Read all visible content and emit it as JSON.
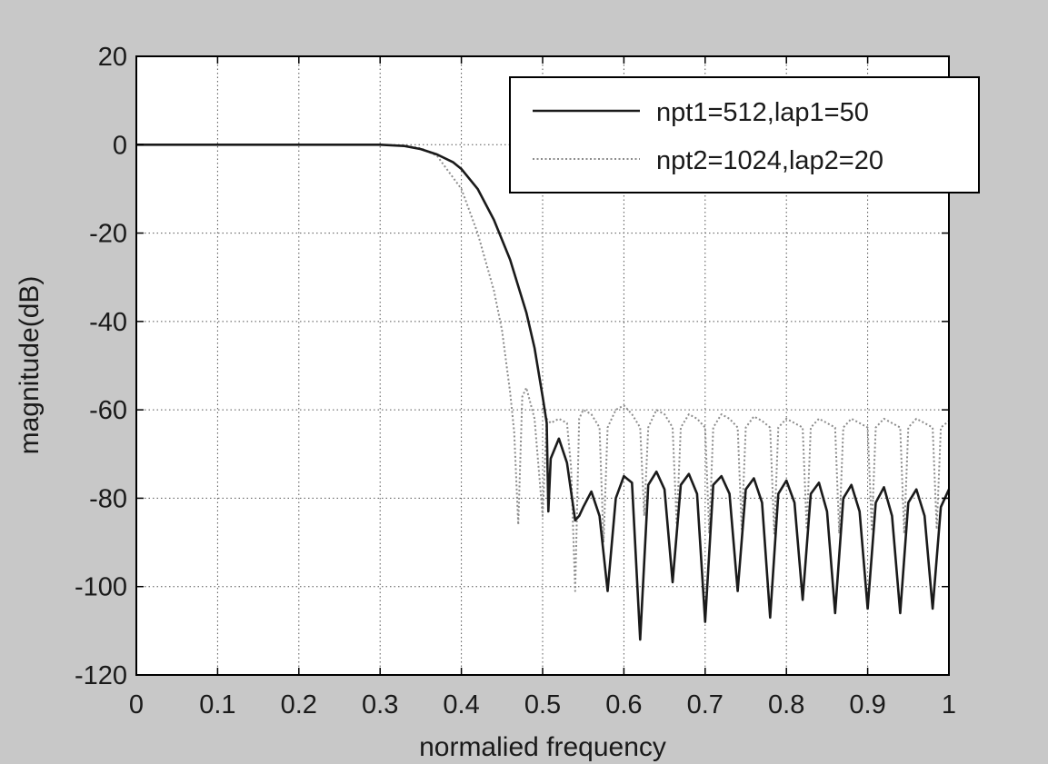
{
  "chart_data": {
    "type": "line",
    "title": "",
    "xlabel": "normalied frequency",
    "ylabel": "magnitude(dB)",
    "xlim": [
      0,
      1
    ],
    "ylim": [
      -120,
      20
    ],
    "xticks": [
      0,
      0.1,
      0.2,
      0.3,
      0.4,
      0.5,
      0.6,
      0.7,
      0.8,
      0.9,
      1
    ],
    "xtick_labels": [
      "0",
      "0.1",
      "0.2",
      "0.3",
      "0.4",
      "0.5",
      "0.6",
      "0.7",
      "0.8",
      "0.9",
      "1"
    ],
    "yticks": [
      20,
      0,
      -20,
      -40,
      -60,
      -80,
      -100,
      -120
    ],
    "ytick_labels": [
      "20",
      "0",
      "-20",
      "-40",
      "-60",
      "-80",
      "-100",
      "-120"
    ],
    "grid": true,
    "legend_position": "top-right",
    "series": [
      {
        "name": "npt1=512,lap1=50",
        "color": "#1a1a1a",
        "style": "solid",
        "x": [
          0,
          0.1,
          0.2,
          0.3,
          0.33,
          0.35,
          0.37,
          0.39,
          0.4,
          0.42,
          0.44,
          0.46,
          0.48,
          0.49,
          0.5,
          0.505,
          0.507,
          0.51,
          0.52,
          0.53,
          0.54,
          0.545,
          0.55,
          0.56,
          0.57,
          0.58,
          0.59,
          0.6,
          0.61,
          0.62,
          0.63,
          0.64,
          0.65,
          0.66,
          0.67,
          0.68,
          0.69,
          0.7,
          0.71,
          0.72,
          0.73,
          0.74,
          0.75,
          0.76,
          0.77,
          0.78,
          0.79,
          0.8,
          0.81,
          0.82,
          0.83,
          0.84,
          0.85,
          0.86,
          0.87,
          0.88,
          0.89,
          0.9,
          0.91,
          0.92,
          0.93,
          0.94,
          0.95,
          0.96,
          0.97,
          0.98,
          0.99,
          1.0
        ],
        "y": [
          0,
          0,
          0,
          0,
          -0.3,
          -1.0,
          -2.2,
          -4.0,
          -5.5,
          -10,
          -17,
          -26,
          -38,
          -46,
          -57,
          -63,
          -83,
          -71,
          -66.5,
          -72,
          -85,
          -84,
          -82,
          -78.5,
          -84,
          -101,
          -80,
          -75,
          -76.5,
          -112,
          -77,
          -74,
          -78,
          -99,
          -77,
          -74.5,
          -79,
          -108,
          -77,
          -75,
          -79,
          -101,
          -78,
          -75.5,
          -81,
          -107,
          -79,
          -76,
          -81,
          -103,
          -79,
          -76.5,
          -83,
          -106,
          -80,
          -77,
          -83,
          -105,
          -81,
          -77.5,
          -84,
          -106,
          -81,
          -78,
          -84,
          -105,
          -82,
          -78
        ]
      },
      {
        "name": "npt2=1024,lap2=20",
        "color": "#8c8c8c",
        "style": "dotted",
        "x": [
          0,
          0.1,
          0.2,
          0.3,
          0.33,
          0.35,
          0.37,
          0.38,
          0.4,
          0.42,
          0.44,
          0.45,
          0.46,
          0.465,
          0.47,
          0.475,
          0.48,
          0.49,
          0.5,
          0.505,
          0.51,
          0.52,
          0.53,
          0.535,
          0.54,
          0.545,
          0.55,
          0.56,
          0.57,
          0.575,
          0.58,
          0.59,
          0.6,
          0.61,
          0.62,
          0.625,
          0.63,
          0.64,
          0.65,
          0.66,
          0.665,
          0.67,
          0.68,
          0.69,
          0.7,
          0.705,
          0.71,
          0.72,
          0.73,
          0.74,
          0.745,
          0.75,
          0.76,
          0.77,
          0.78,
          0.785,
          0.79,
          0.8,
          0.81,
          0.82,
          0.825,
          0.83,
          0.84,
          0.85,
          0.86,
          0.865,
          0.87,
          0.88,
          0.89,
          0.9,
          0.905,
          0.91,
          0.92,
          0.93,
          0.94,
          0.945,
          0.95,
          0.96,
          0.97,
          0.98,
          0.985,
          0.99,
          1.0
        ],
        "y": [
          0,
          0,
          0,
          0,
          -0.2,
          -0.8,
          -2.5,
          -5,
          -10,
          -20,
          -33,
          -42,
          -56,
          -65,
          -86,
          -57,
          -55,
          -62,
          -84,
          -62,
          -63,
          -62,
          -63,
          -73,
          -101,
          -62,
          -60,
          -61,
          -64,
          -90,
          -64,
          -60,
          -59,
          -61,
          -64,
          -84,
          -64,
          -60,
          -61,
          -64,
          -86,
          -64,
          -61,
          -62,
          -64,
          -88,
          -64,
          -61,
          -62,
          -64,
          -87,
          -64,
          -61.5,
          -62.5,
          -64,
          -88,
          -64,
          -62,
          -63,
          -64,
          -87,
          -64,
          -62,
          -63,
          -64,
          -88,
          -64,
          -62,
          -63,
          -64,
          -87,
          -64,
          -62,
          -63,
          -64,
          -88,
          -64,
          -62,
          -63,
          -64,
          -87,
          -64,
          -62.5
        ]
      }
    ]
  }
}
